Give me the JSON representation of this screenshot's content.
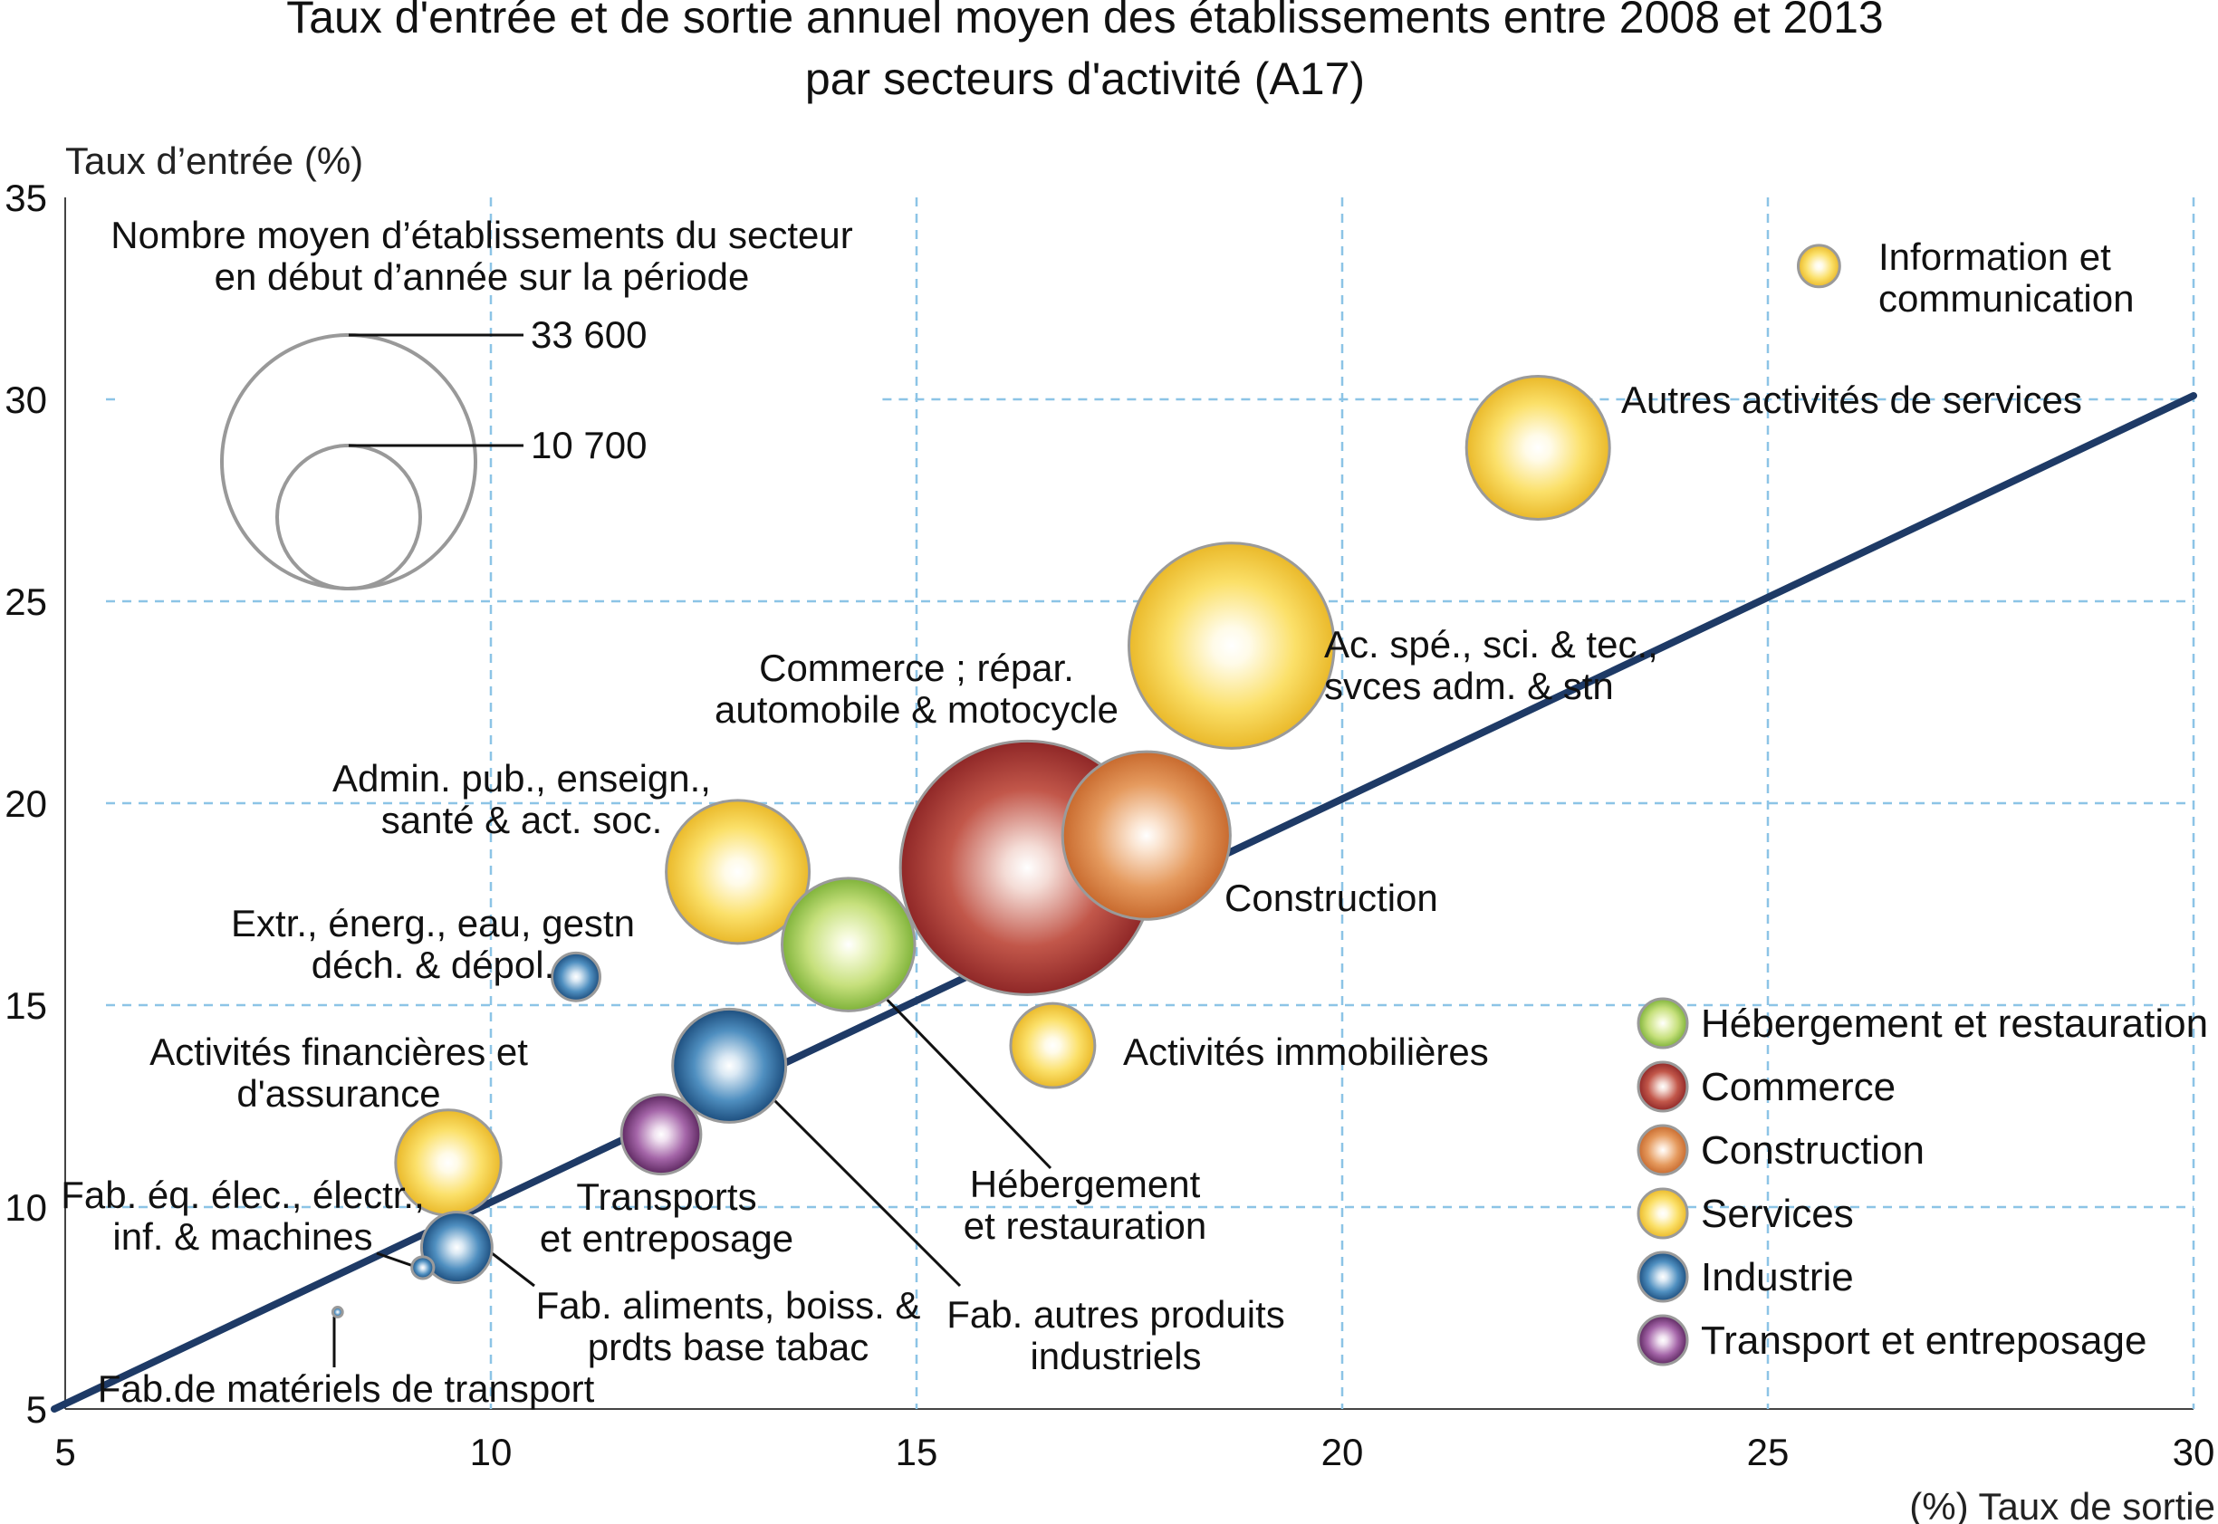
{
  "chart_data": {
    "type": "scatter",
    "title": [
      "Taux d'entrée et de sortie annuel moyen des établissements entre 2008 et 2013",
      "par secteurs d'activité (A17)"
    ],
    "ylabel": "Taux d’entrée (%)",
    "xlabel": "(%) Taux de sortie",
    "xlim": [
      5,
      30
    ],
    "ylim": [
      5,
      35
    ],
    "xticks": [
      "5",
      "10",
      "15",
      "20",
      "25",
      "30"
    ],
    "yticks": [
      "5",
      "10",
      "15",
      "20",
      "25",
      "30",
      "35"
    ],
    "grid": true,
    "reference_line": {
      "from": [
        5,
        5
      ],
      "to": [
        30,
        30
      ]
    },
    "size_legend": {
      "title": [
        "Nombre moyen d’établissements du secteur",
        "en début d’année sur la période"
      ],
      "values": [
        {
          "label": "33 600",
          "value": 33600
        },
        {
          "label": "10 700",
          "value": 10700
        }
      ]
    },
    "categories": [
      {
        "id": "hebergement",
        "name": "Hébergement et restauration",
        "colors": [
          "#f3f9d6",
          "#c6e07c",
          "#7fb33a"
        ]
      },
      {
        "id": "commerce",
        "name": "Commerce",
        "colors": [
          "#f4dcd6",
          "#c2574a",
          "#8f2727"
        ]
      },
      {
        "id": "construction",
        "name": "Construction",
        "colors": [
          "#fbe5d2",
          "#e59a5e",
          "#c86a2e"
        ]
      },
      {
        "id": "services",
        "name": "Services",
        "colors": [
          "#fffbe8",
          "#fbe069",
          "#eab92a"
        ]
      },
      {
        "id": "industrie",
        "name": "Industrie",
        "colors": [
          "#dbe9f4",
          "#4f8fc0",
          "#1d4e7e"
        ]
      },
      {
        "id": "transport",
        "name": "Transport et entreposage",
        "colors": [
          "#f0e1f0",
          "#a465a8",
          "#5d2860"
        ]
      }
    ],
    "points": [
      {
        "label": [
          "Information et",
          "communication"
        ],
        "category": "services",
        "x": 25.6,
        "y": 33.3,
        "size": 900
      },
      {
        "label": [
          "Autres activités de services"
        ],
        "category": "services",
        "x": 22.3,
        "y": 28.8,
        "size": 10700
      },
      {
        "label": [
          "Ac. spé., sci. & tec.,",
          "svces adm. & stn"
        ],
        "category": "services",
        "x": 18.7,
        "y": 23.9,
        "size": 22000
      },
      {
        "label": [
          "Commerce ; répar.",
          "automobile & motocycle"
        ],
        "category": "commerce",
        "x": 16.3,
        "y": 18.4,
        "size": 33600
      },
      {
        "label": [
          "Construction"
        ],
        "category": "construction",
        "x": 17.7,
        "y": 19.2,
        "size": 14700
      },
      {
        "label": [
          "Admin. pub., enseign.,",
          "santé & act. soc."
        ],
        "category": "services",
        "x": 12.9,
        "y": 18.3,
        "size": 10700
      },
      {
        "label": [
          "Hébergement",
          "et restauration"
        ],
        "category": "hebergement",
        "x": 14.2,
        "y": 16.5,
        "size": 9200
      },
      {
        "label": [
          "Extr., énerg., eau, gestn",
          "déch. & dépol."
        ],
        "category": "industrie",
        "x": 11.0,
        "y": 15.7,
        "size": 1200
      },
      {
        "label": [
          "Activités immobilières"
        ],
        "category": "services",
        "x": 16.6,
        "y": 14.0,
        "size": 3700
      },
      {
        "label": [
          "Fab. autres produits",
          "industriels"
        ],
        "category": "industrie",
        "x": 12.8,
        "y": 13.5,
        "size": 6700
      },
      {
        "label": [
          "Transports",
          "et entreposage"
        ],
        "category": "transport",
        "x": 12.0,
        "y": 11.8,
        "size": 3300
      },
      {
        "label": [
          "Activités financières et",
          "d'assurance"
        ],
        "category": "services",
        "x": 9.5,
        "y": 11.1,
        "size": 5800
      },
      {
        "label": [
          "Fab. aliments, boiss. &",
          "prdts base tabac"
        ],
        "category": "industrie",
        "x": 9.6,
        "y": 9.0,
        "size": 2600
      },
      {
        "label": [
          "Fab. éq. élec., électr.,",
          "inf. &  machines"
        ],
        "category": "industrie",
        "x": 9.2,
        "y": 8.5,
        "size": 250
      },
      {
        "label": [
          "Fab.de matériels de transport"
        ],
        "category": "industrie",
        "x": 8.2,
        "y": 7.4,
        "size": 50
      }
    ]
  }
}
